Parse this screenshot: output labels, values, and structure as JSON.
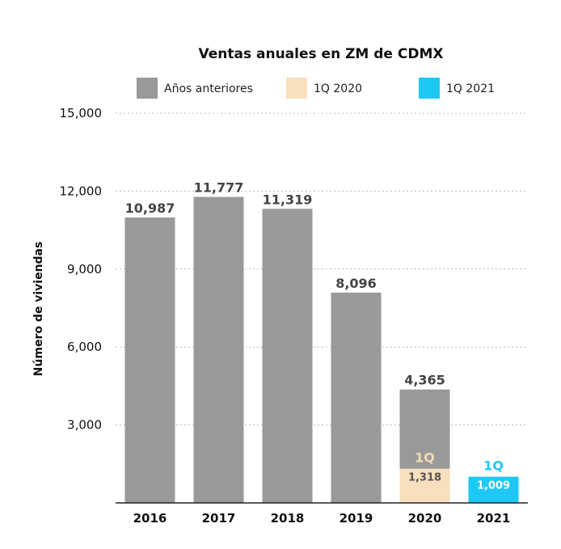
{
  "chart_data": {
    "type": "bar",
    "title": "Ventas anuales en ZM de CDMX",
    "ylabel": "Número de viviendas",
    "xlabel": "",
    "ylim": [
      0,
      15000
    ],
    "yticks": [
      3000,
      6000,
      9000,
      12000,
      15000
    ],
    "ytick_labels": [
      "3,000",
      "6,000",
      "9,000",
      "12,000",
      "15,000"
    ],
    "grid": true,
    "legend_position": "top",
    "categories": [
      "2016",
      "2017",
      "2018",
      "2019",
      "2020",
      "2021"
    ],
    "series": [
      {
        "name": "Años anteriores",
        "color": "#999999",
        "values": [
          10987,
          11777,
          11319,
          8096,
          4365,
          null
        ],
        "labels": [
          "10,987",
          "11,777",
          "11,319",
          "8,096",
          "4,365",
          ""
        ]
      },
      {
        "name": "1Q 2020",
        "color": "#F8E0BE",
        "values": [
          null,
          null,
          null,
          null,
          1318,
          null
        ],
        "labels": [
          "",
          "",
          "",
          "",
          "1,318",
          ""
        ]
      },
      {
        "name": "1Q 2021",
        "color": "#1EC8F5",
        "values": [
          null,
          null,
          null,
          null,
          null,
          1009
        ],
        "labels": [
          "",
          "",
          "",
          "",
          "",
          "1,009"
        ]
      }
    ],
    "annotations": [
      {
        "category": "2020",
        "text": "1Q",
        "color": "#F1D9B2"
      },
      {
        "category": "2021",
        "text": "1Q",
        "color": "#1EC8F5"
      }
    ]
  }
}
